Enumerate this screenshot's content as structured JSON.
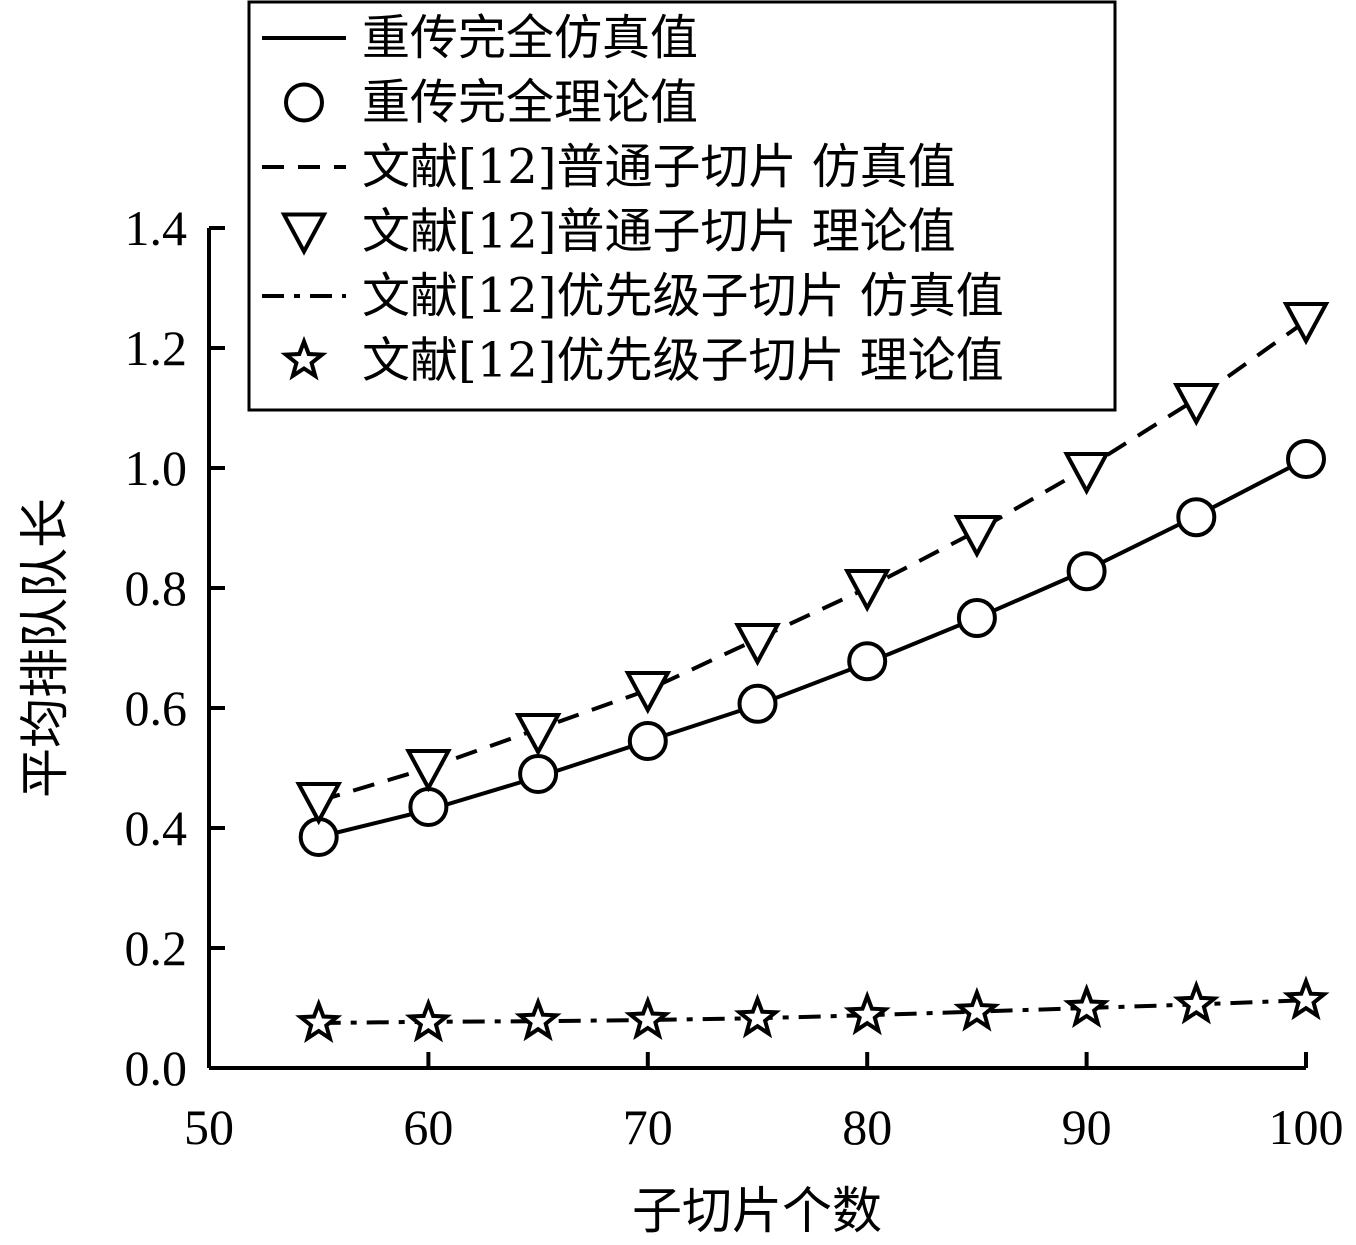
{
  "chart_data": {
    "type": "line",
    "xlabel": "子切片个数",
    "ylabel": "平均排队队长",
    "xlim": [
      50,
      100
    ],
    "ylim": [
      0.0,
      1.4
    ],
    "xticks": [
      "50",
      "60",
      "70",
      "80",
      "90",
      "100"
    ],
    "yticks": [
      "0.0",
      "0.2",
      "0.4",
      "0.6",
      "0.8",
      "1.0",
      "1.2",
      "1.4"
    ],
    "grid": false,
    "legend_position": "top-left",
    "x": [
      55,
      60,
      65,
      70,
      75,
      80,
      85,
      90,
      95,
      100
    ],
    "series": [
      {
        "name": "重传完全仿真值",
        "style": "solid",
        "marker": "none",
        "values": [
          0.385,
          0.43,
          0.485,
          0.545,
          0.605,
          0.675,
          0.75,
          0.83,
          0.92,
          1.015
        ]
      },
      {
        "name": "重传完全理论值",
        "style": "none",
        "marker": "circle",
        "values": [
          0.385,
          0.435,
          0.49,
          0.545,
          0.607,
          0.678,
          0.75,
          0.828,
          0.918,
          1.015
        ]
      },
      {
        "name": "文献[12]普通子切片 仿真值",
        "style": "dashed",
        "marker": "none",
        "values": [
          0.445,
          0.5,
          0.565,
          0.63,
          0.715,
          0.8,
          0.895,
          1.0,
          1.115,
          1.245
        ]
      },
      {
        "name": "文献[12]普通子切片 理论值",
        "style": "none",
        "marker": "triangle-down",
        "values": [
          0.445,
          0.5,
          0.56,
          0.63,
          0.71,
          0.8,
          0.89,
          0.995,
          1.11,
          1.245
        ]
      },
      {
        "name": "文献[12]优先级子切片 仿真值",
        "style": "dashdot",
        "marker": "none",
        "values": [
          0.075,
          0.077,
          0.078,
          0.08,
          0.083,
          0.088,
          0.094,
          0.1,
          0.106,
          0.113
        ]
      },
      {
        "name": "文献[12]优先级子切片 理论值",
        "style": "none",
        "marker": "star",
        "values": [
          0.075,
          0.076,
          0.078,
          0.08,
          0.083,
          0.088,
          0.094,
          0.1,
          0.106,
          0.113
        ]
      }
    ]
  }
}
